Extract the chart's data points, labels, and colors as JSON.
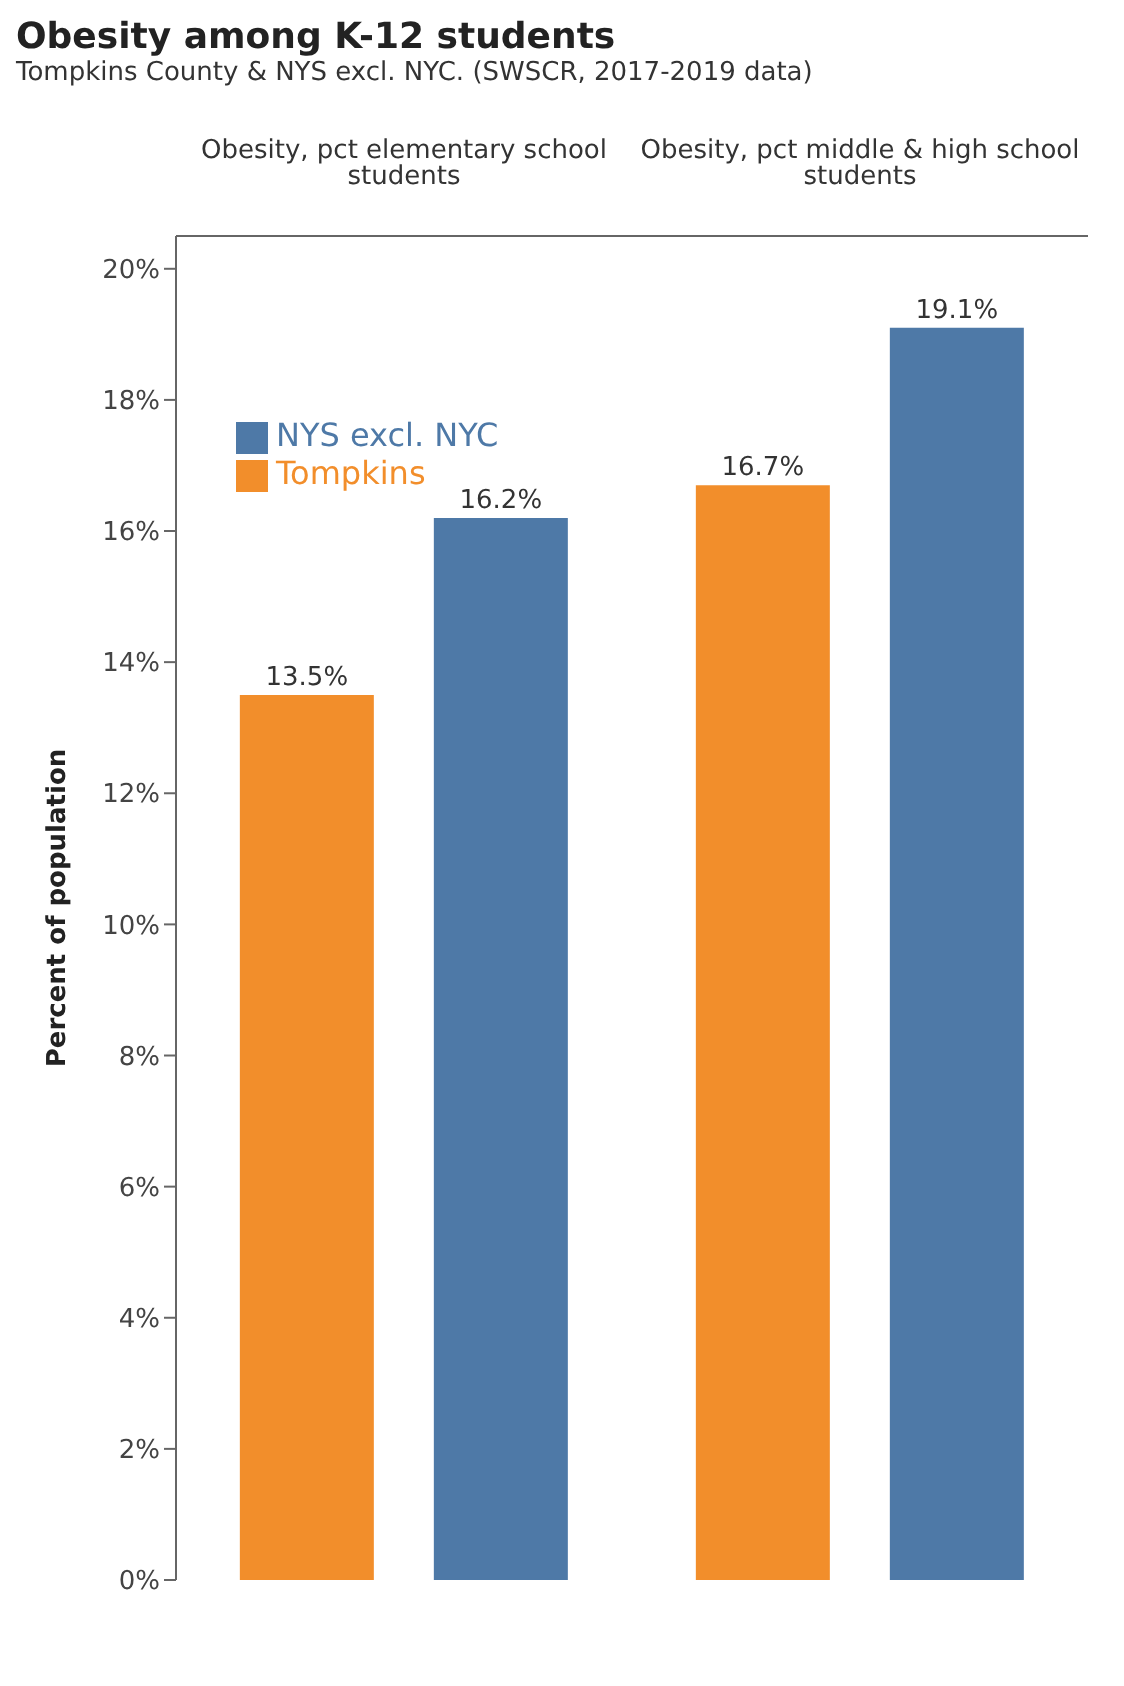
{
  "chart_data": {
    "type": "bar",
    "title": "Obesity among K-12 students",
    "subtitle": "Tompkins County & NYS excl. NYC. (SWSCR, 2017-2019 data)",
    "ylabel": "Percent of population",
    "categories": [
      "Obesity, pct elementary school students",
      "Obesity, pct middle & high school students"
    ],
    "series": [
      {
        "name": "Tompkins",
        "color": "#f28e2b",
        "values": [
          13.5,
          16.7
        ],
        "value_labels": [
          "13.5%",
          "16.7%"
        ]
      },
      {
        "name": "NYS excl. NYC",
        "color": "#4e79a7",
        "values": [
          16.2,
          19.1
        ],
        "value_labels": [
          "16.2%",
          "19.1%"
        ]
      }
    ],
    "ylim": [
      0,
      20.5
    ],
    "yticks": [
      {
        "value": 0,
        "label": "0%"
      },
      {
        "value": 2,
        "label": "2%"
      },
      {
        "value": 4,
        "label": "4%"
      },
      {
        "value": 6,
        "label": "6%"
      },
      {
        "value": 8,
        "label": "8%"
      },
      {
        "value": 10,
        "label": "10%"
      },
      {
        "value": 12,
        "label": "12%"
      },
      {
        "value": 14,
        "label": "14%"
      },
      {
        "value": 16,
        "label": "16%"
      },
      {
        "value": 18,
        "label": "18%"
      },
      {
        "value": 20,
        "label": "20%"
      }
    ],
    "legend": "top left",
    "grid": false
  }
}
